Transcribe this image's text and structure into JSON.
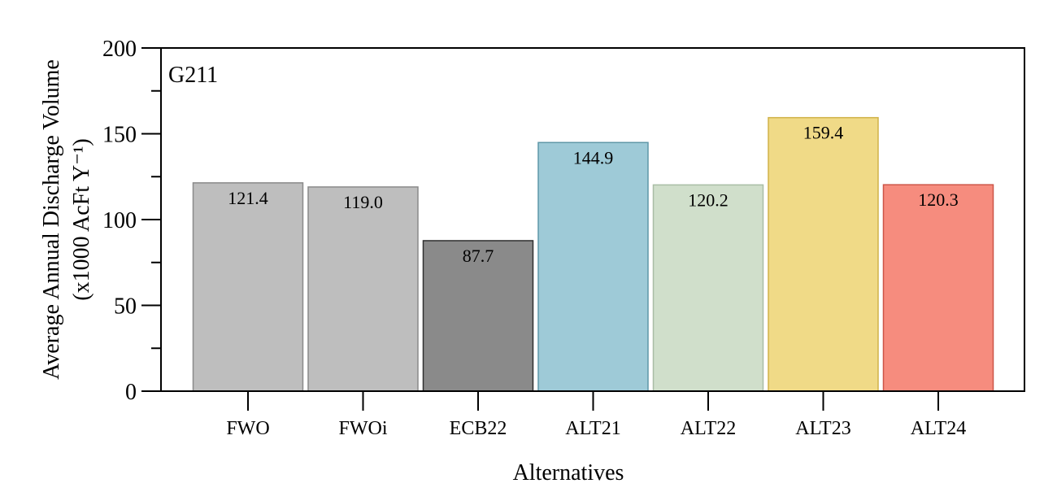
{
  "chart_data": {
    "type": "bar",
    "panel_label": "G211",
    "xlabel": "Alternatives",
    "ylabel_line1": "Average Annual Discharge Volume",
    "ylabel_line2": "(x1000 AcFt Y⁻¹)",
    "ylim": [
      0,
      200
    ],
    "yticks": [
      0,
      50,
      100,
      150,
      200
    ],
    "categories": [
      "FWO",
      "FWOi",
      "ECB22",
      "ALT21",
      "ALT22",
      "ALT23",
      "ALT24"
    ],
    "values": [
      121.4,
      119.0,
      87.7,
      144.9,
      120.2,
      159.4,
      120.3
    ],
    "value_labels": [
      "121.4",
      "119.0",
      "87.7",
      "144.9",
      "120.2",
      "159.4",
      "120.3"
    ],
    "colors": [
      "#bebebe",
      "#bebebe",
      "#8a8a8a",
      "#9ecad7",
      "#d0dfcb",
      "#f0da87",
      "#f68c7e"
    ],
    "edge_colors": [
      "#8a8a8a",
      "#8a8a8a",
      "#303030",
      "#5f97a8",
      "#a9bda5",
      "#d0b248",
      "#cc5548"
    ],
    "grid": false,
    "legend": "none"
  }
}
